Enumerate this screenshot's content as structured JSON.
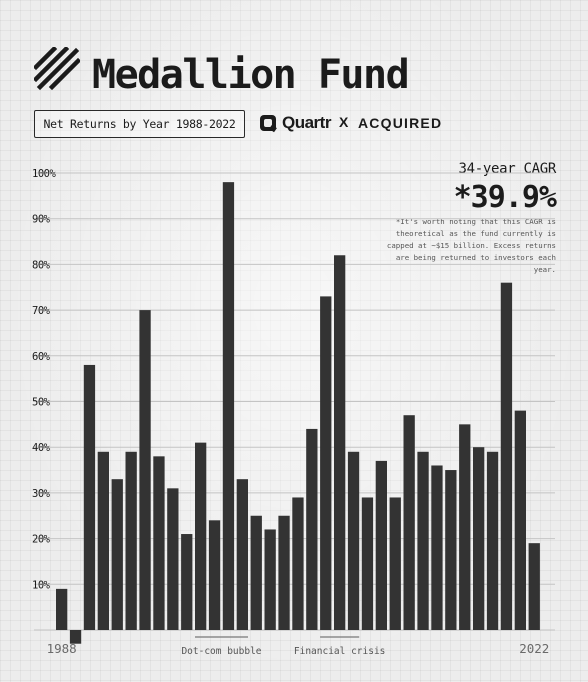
{
  "header": {
    "title": "Medallion Fund",
    "subtitle": "Net Returns by Year 1988-2022"
  },
  "brands": {
    "quartr": "Quartr",
    "separator": "X",
    "acquired": "ACQUIRED"
  },
  "cagr": {
    "label": "34-year CAGR",
    "value": "*39.9%",
    "note": "*It's worth noting that this CAGR is theoretical as the fund currently is capped at ~$15 billion. Excess returns are being returned to investors each year."
  },
  "colors": {
    "bar": "#333333",
    "gridline": "#c4c4c4",
    "text": "#1b1b1b",
    "annotation_line": "#777777"
  },
  "chart_data": {
    "type": "bar",
    "x_tick_labels": [
      "1988",
      "2022"
    ],
    "categories": [
      "1988",
      "1989",
      "1990",
      "1991",
      "1992",
      "1993",
      "1994",
      "1995",
      "1996",
      "1997",
      "1998",
      "1999",
      "2000",
      "2001",
      "2002",
      "2003",
      "2004",
      "2005",
      "2006",
      "2007",
      "2008",
      "2009",
      "2010",
      "2011",
      "2012",
      "2013",
      "2014",
      "2015",
      "2016",
      "2017",
      "2018",
      "2019",
      "2020",
      "2021",
      "2022"
    ],
    "values": [
      9,
      -3,
      58,
      39,
      33,
      39,
      70,
      38,
      31,
      21,
      41,
      24,
      98,
      33,
      25,
      22,
      25,
      29,
      44,
      73,
      82,
      39,
      29,
      37,
      29,
      47,
      39,
      36,
      35,
      45,
      40,
      39,
      76,
      48,
      19
    ],
    "ylim": [
      -3,
      100
    ],
    "yticks": [
      10,
      20,
      30,
      40,
      50,
      60,
      70,
      80,
      90,
      100
    ],
    "ytick_labels": [
      "10%",
      "20%",
      "30%",
      "40%",
      "50%",
      "60%",
      "70%",
      "80%",
      "90%",
      "100%"
    ],
    "grid": true,
    "annotations": [
      {
        "text": "Dot-com bubble",
        "start": "1998",
        "end": "2001"
      },
      {
        "text": "Financial crisis",
        "start": "2007",
        "end": "2009"
      }
    ]
  }
}
